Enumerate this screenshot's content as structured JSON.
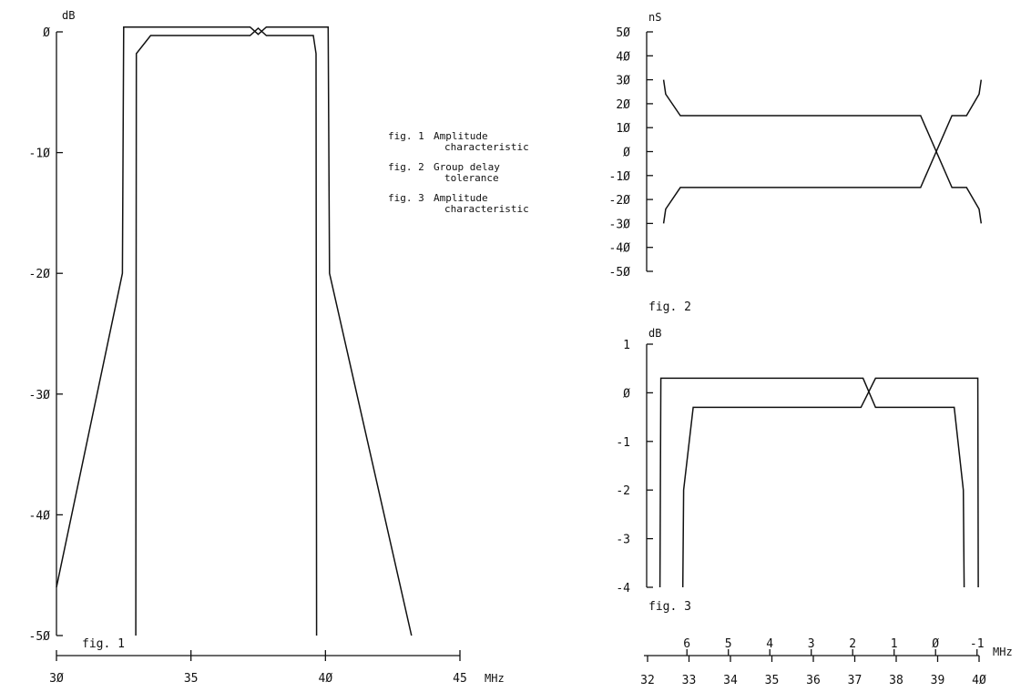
{
  "legend": {
    "items": [
      {
        "key": "fig. 1",
        "text": [
          "Amplitude",
          "characteristic"
        ]
      },
      {
        "key": "fig. 2",
        "text": [
          "Group delay",
          "tolerance"
        ]
      },
      {
        "key": "fig. 3",
        "text": [
          "Amplitude",
          "characteristic"
        ]
      }
    ]
  },
  "chart_data": [
    {
      "id": "fig1",
      "type": "line",
      "caption": "fig. 1",
      "ylabel": "dB",
      "xunit": "MHz",
      "xlim": [
        30,
        45
      ],
      "ylim": [
        -50,
        0
      ],
      "yticks": [
        0,
        -10,
        -20,
        -30,
        -40,
        -50
      ],
      "ytick_labels": [
        "Ø",
        "-1Ø",
        "-2Ø",
        "-3Ø",
        "-4Ø",
        "-5Ø"
      ],
      "xticks": [
        30,
        35,
        40,
        45
      ],
      "xtick_labels": [
        "3Ø",
        "35",
        "4Ø",
        "45"
      ],
      "grid": false,
      "series": [
        {
          "points": [
            [
              30,
              -46
            ],
            [
              32.45,
              -20
            ],
            [
              32.5,
              0.4
            ],
            [
              37.2,
              0.4
            ],
            [
              37.5,
              -0.2
            ],
            [
              37.8,
              0.4
            ],
            [
              40.1,
              0.4
            ],
            [
              40.15,
              -20
            ],
            [
              43.2,
              -50
            ]
          ]
        },
        {
          "points": [
            [
              32.95,
              -50
            ],
            [
              32.97,
              -1.8
            ],
            [
              33.5,
              -0.3
            ],
            [
              37.2,
              -0.3
            ],
            [
              37.5,
              0.3
            ],
            [
              37.8,
              -0.3
            ],
            [
              39.55,
              -0.3
            ],
            [
              39.65,
              -1.8
            ],
            [
              39.67,
              -50
            ]
          ]
        }
      ]
    },
    {
      "id": "fig2",
      "type": "line",
      "caption": "fig. 2",
      "ylabel": "nS",
      "xlim": [
        32,
        40
      ],
      "ylim": [
        -50,
        50
      ],
      "yticks": [
        50,
        40,
        30,
        20,
        10,
        0,
        -10,
        -20,
        -30,
        -40,
        -50
      ],
      "ytick_labels": [
        "5Ø",
        "4Ø",
        "3Ø",
        "2Ø",
        "1Ø",
        "Ø",
        "-1Ø",
        "-2Ø",
        "-3Ø",
        "-4Ø",
        "-5Ø"
      ],
      "grid": false,
      "series": [
        {
          "points": [
            [
              32.45,
              30
            ],
            [
              32.5,
              24
            ],
            [
              32.85,
              15
            ],
            [
              38.6,
              15
            ],
            [
              39.35,
              -15
            ],
            [
              39.7,
              -15
            ],
            [
              40,
              -24
            ],
            [
              40.05,
              -30
            ]
          ]
        },
        {
          "points": [
            [
              32.45,
              -30
            ],
            [
              32.5,
              -24
            ],
            [
              32.85,
              -15
            ],
            [
              38.6,
              -15
            ],
            [
              39.35,
              15
            ],
            [
              39.7,
              15
            ],
            [
              40,
              24
            ],
            [
              40.05,
              30
            ]
          ]
        }
      ]
    },
    {
      "id": "fig3",
      "type": "line",
      "caption": "fig. 3",
      "ylabel": "dB",
      "xunit": "MHz",
      "xlim": [
        32,
        40
      ],
      "ylim": [
        -4,
        1
      ],
      "yticks": [
        1,
        0,
        -1,
        -2,
        -3,
        -4
      ],
      "ytick_labels": [
        "1",
        "Ø",
        "-1",
        "-2",
        "-3",
        "-4"
      ],
      "xticks": [
        32,
        33,
        34,
        35,
        36,
        37,
        38,
        39,
        40
      ],
      "xtick_labels": [
        "32",
        "33",
        "34",
        "35",
        "36",
        "37",
        "38",
        "39",
        "4Ø"
      ],
      "channel_ticks": [
        32.95,
        33.95,
        34.95,
        35.95,
        36.95,
        37.95,
        38.95,
        39.95
      ],
      "channel_labels": [
        "6",
        "5",
        "4",
        "3",
        "2",
        "1",
        "Ø",
        "-1"
      ],
      "grid": false,
      "series": [
        {
          "points": [
            [
              32.3,
              -4
            ],
            [
              32.32,
              0.3
            ],
            [
              37.2,
              0.3
            ],
            [
              37.5,
              -0.3
            ],
            [
              37.7,
              -0.3
            ],
            [
              39.4,
              -0.3
            ],
            [
              39.62,
              -2
            ],
            [
              39.64,
              -4
            ]
          ]
        },
        {
          "points": [
            [
              32.85,
              -4
            ],
            [
              32.87,
              -2
            ],
            [
              33.1,
              -0.3
            ],
            [
              37.15,
              -0.3
            ],
            [
              37.5,
              0.3
            ],
            [
              39.97,
              0.3
            ],
            [
              39.98,
              -4
            ]
          ]
        }
      ]
    }
  ]
}
